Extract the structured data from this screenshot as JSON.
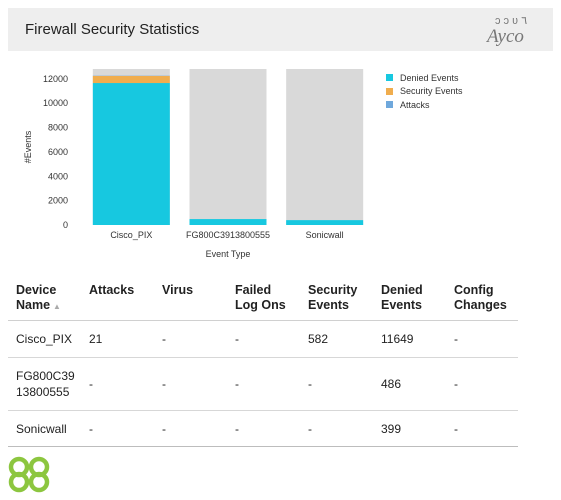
{
  "header": {
    "title": "Firewall Security Statistics",
    "logo_text": "Ayco"
  },
  "colors": {
    "denied": "#17c8e0",
    "security": "#f0ad4e",
    "attacks": "#6fa8dc",
    "bar_bg": "#d9d9d9",
    "header_bg": "#eeeeee",
    "logo_green": "#8cc63f"
  },
  "chart_data": {
    "type": "bar",
    "stacked": true,
    "categories": [
      "Cisco_PIX",
      "FG800C3913800555",
      "Sonicwall"
    ],
    "series": [
      {
        "name": "Denied Events",
        "values": [
          11649,
          486,
          399
        ]
      },
      {
        "name": "Security Events",
        "values": [
          582,
          0,
          0
        ]
      },
      {
        "name": "Attacks",
        "values": [
          21,
          0,
          0
        ]
      }
    ],
    "xlabel": "Event Type",
    "ylabel": "#Events",
    "ylim": [
      0,
      12800
    ],
    "yticks": [
      0,
      2000,
      4000,
      6000,
      8000,
      10000,
      12000
    ],
    "legend_position": "right"
  },
  "table": {
    "columns": [
      [
        "Device",
        "Name"
      ],
      [
        "Attacks"
      ],
      [
        "Virus"
      ],
      [
        "Failed",
        "Log Ons"
      ],
      [
        "Security",
        "Events"
      ],
      [
        "Denied",
        "Events"
      ],
      [
        "Config",
        "Changes"
      ]
    ],
    "sort_indicator": "▲",
    "rows": [
      [
        "Cisco_PIX",
        "21",
        "-",
        "-",
        "582",
        "11649",
        "-"
      ],
      [
        "FG800C39\n13800555",
        "-",
        "-",
        "-",
        "-",
        "486",
        "-"
      ],
      [
        "Sonicwall",
        "-",
        "-",
        "-",
        "-",
        "399",
        "-"
      ]
    ]
  }
}
